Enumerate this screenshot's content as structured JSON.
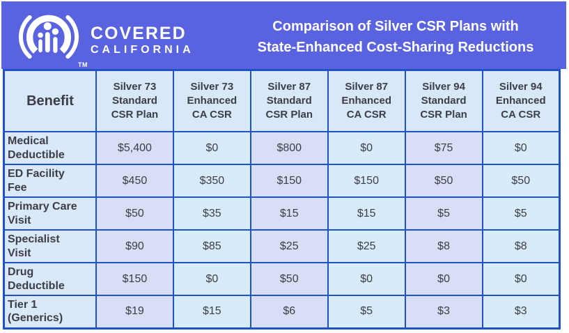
{
  "page": {
    "background_color": "#FFFFFF"
  },
  "banner": {
    "background_color": "#5A63DF",
    "logo": {
      "icon": "covered-california-arch-people-logo",
      "brand_line1": "COVERED",
      "brand_line2": "CALIFORNIA",
      "trademark": "TM"
    },
    "title": "Comparison of Silver CSR Plans with\nState-Enhanced Cost-Sharing Reductions",
    "title_color": "#FFFFFF"
  },
  "table": {
    "border_color": "#1E52C6",
    "header_bg": "#D7E8F8",
    "benefit_col_bg": "#DAE9F9",
    "standard_col_bg": "#D8DEF6",
    "enhanced_col_bg": "#D8EBFA",
    "text_color": "#3C3D47",
    "columns": [
      {
        "label": "Benefit",
        "type": "benefit"
      },
      {
        "label": "Silver 73\nStandard\nCSR Plan",
        "type": "standard"
      },
      {
        "label": "Silver 73\nEnhanced\nCA CSR",
        "type": "enhanced"
      },
      {
        "label": "Silver 87\nStandard\nCSR Plan",
        "type": "standard"
      },
      {
        "label": "Silver 87\nEnhanced\nCA CSR",
        "type": "enhanced"
      },
      {
        "label": "Silver 94\nStandard\nCSR Plan",
        "type": "standard"
      },
      {
        "label": "Silver 94\nEnhanced\nCA CSR",
        "type": "enhanced"
      }
    ],
    "rows": [
      {
        "benefit": "Medical\nDeductible",
        "values": [
          "$5,400",
          "$0",
          "$800",
          "$0",
          "$75",
          "$0"
        ]
      },
      {
        "benefit": "ED Facility\nFee",
        "values": [
          "$450",
          "$350",
          "$150",
          "$150",
          "$50",
          "$50"
        ]
      },
      {
        "benefit": "Primary Care\nVisit",
        "values": [
          "$50",
          "$35",
          "$15",
          "$15",
          "$5",
          "$5"
        ]
      },
      {
        "benefit": "Specialist\nVisit",
        "values": [
          "$90",
          "$85",
          "$25",
          "$25",
          "$8",
          "$8"
        ]
      },
      {
        "benefit": "Drug\nDeductible",
        "values": [
          "$150",
          "$0",
          "$50",
          "$0",
          "$0",
          "$0"
        ]
      },
      {
        "benefit": "Tier 1\n(Generics)",
        "values": [
          "$19",
          "$15",
          "$6",
          "$5",
          "$3",
          "$3"
        ]
      }
    ]
  }
}
